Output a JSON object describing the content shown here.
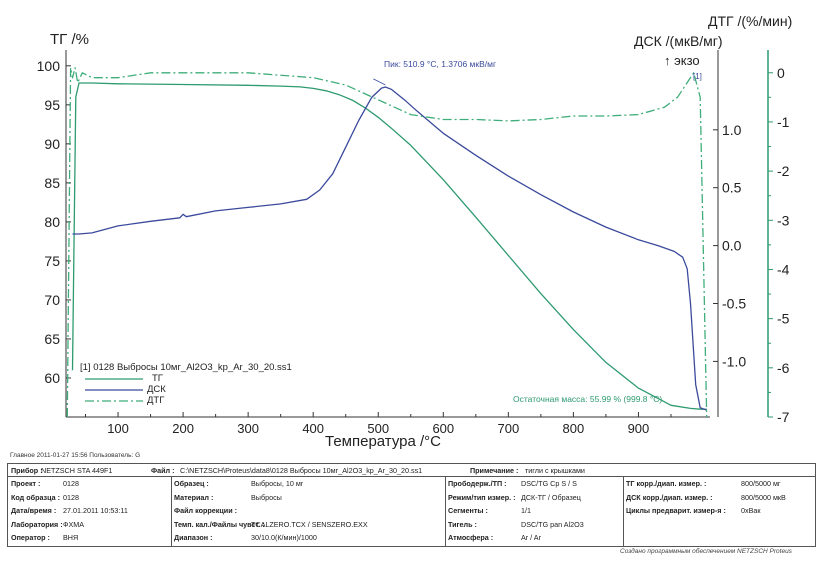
{
  "chart_data": {
    "type": "line",
    "xlabel": "Температура /°C",
    "xlim": [
      20,
      1010
    ],
    "x_ticks": [
      100,
      200,
      300,
      400,
      500,
      600,
      700,
      800,
      900
    ],
    "left_axis": {
      "label": "ТГ /%",
      "range": [
        55,
        101
      ],
      "ticks": [
        60,
        65,
        70,
        75,
        80,
        85,
        90,
        95,
        100
      ]
    },
    "right_axis_dsc": {
      "label": "ДСК /(мкВ/мг)",
      "range": [
        -1.48,
        1.62
      ],
      "ticks": [
        "1.0",
        "0.5",
        "0.0",
        "-0.5",
        "-1.0"
      ],
      "tick_values": [
        1.0,
        0.5,
        0.0,
        -0.5,
        -1.0
      ]
    },
    "right_axis_dtg": {
      "label": "ДТГ /(%/мин)",
      "range": [
        -7.0,
        0.3
      ],
      "ticks": [
        0,
        -1,
        -2,
        -3,
        -4,
        -5,
        -6,
        -7
      ]
    },
    "exo_label": "↑ экзо",
    "segment_marker": "[1]",
    "series": [
      {
        "name": "ТГ",
        "axis": "left",
        "color": "#2e9a70",
        "dash": "solid",
        "x": [
          30,
          32,
          35,
          40,
          60,
          100,
          200,
          300,
          350,
          380,
          400,
          420,
          440,
          460,
          480,
          500,
          520,
          550,
          600,
          650,
          700,
          750,
          800,
          850,
          900,
          950,
          980,
          995,
          1005
        ],
        "y": [
          61,
          75,
          96,
          97.8,
          97.8,
          97.7,
          97.6,
          97.5,
          97.4,
          97.3,
          97.1,
          96.8,
          96.3,
          95.6,
          94.6,
          93.4,
          92.0,
          89.8,
          85.4,
          80.6,
          75.7,
          70.8,
          66.2,
          62.0,
          58.7,
          56.5,
          56.1,
          56.0,
          56.0
        ]
      },
      {
        "name": "ДСК",
        "axis": "dsc",
        "color": "#3b4a9c",
        "dash": "solid",
        "x": [
          30,
          40,
          60,
          80,
          100,
          150,
          195,
          200,
          205,
          250,
          300,
          350,
          390,
          410,
          430,
          450,
          470,
          490,
          505,
          511,
          520,
          540,
          560,
          600,
          650,
          700,
          750,
          800,
          850,
          900,
          930,
          955,
          968,
          975,
          980,
          988,
          995,
          1005
        ],
        "x_comment": "",
        "y": [
          0.1,
          0.1,
          0.11,
          0.14,
          0.17,
          0.21,
          0.24,
          0.27,
          0.25,
          0.3,
          0.33,
          0.36,
          0.4,
          0.48,
          0.62,
          0.85,
          1.08,
          1.28,
          1.36,
          1.37,
          1.35,
          1.26,
          1.16,
          0.97,
          0.78,
          0.6,
          0.44,
          0.29,
          0.16,
          0.05,
          0.0,
          -0.05,
          -0.1,
          -0.2,
          -0.5,
          -1.2,
          -1.4,
          -1.42
        ]
      },
      {
        "name": "ДТГ",
        "axis": "dtg",
        "color": "#3fae7a",
        "dash": "dashed",
        "x": [
          22,
          27,
          30,
          34,
          38,
          45,
          60,
          80,
          100,
          150,
          200,
          300,
          400,
          450,
          500,
          550,
          600,
          650,
          700,
          750,
          800,
          850,
          900,
          940,
          960,
          975,
          985,
          995,
          1005
        ],
        "y": [
          -7.0,
          0.1,
          -0.1,
          0.1,
          -0.2,
          0.0,
          -0.1,
          -0.1,
          -0.1,
          0.0,
          0.0,
          0.0,
          -0.1,
          -0.25,
          -0.55,
          -0.85,
          -0.95,
          -0.95,
          -0.98,
          -0.95,
          -0.88,
          -0.88,
          -0.85,
          -0.7,
          -0.5,
          -0.2,
          0.0,
          -0.5,
          -7.0
        ]
      }
    ],
    "annotations": {
      "peak": "Пик: 510.9 °C, 1.3706 мкВ/мг",
      "residual": "Остаточная масса: 55.99 % (999.8 °C)"
    },
    "legend": {
      "file": "[1] 0128 Выбросы 10мг_Al2O3_kp_Ar_30_20.ss1",
      "placement": "bottom-left"
    }
  },
  "footer": {
    "user_stamp": "Главное   2011-01-27 15:56   Пользователь: G",
    "software_note": "Создано программным обеспечением NETZSCH Proteus"
  },
  "info_table": {
    "instrument_key": "Прибор :",
    "instrument_val": "NETZSCH STA 449F1",
    "file_key": "Файл :",
    "file_val": "C:\\NETZSCH\\Proteus\\data8\\0128 Выбросы 10мг_Al2O3_kp_Ar_30_20.ss1",
    "note_key": "Примечание :",
    "note_val": "тигли с крышками",
    "rows": [
      [
        {
          "k": "Проект :",
          "v": "0128"
        },
        {
          "k": "Образец :",
          "v": "Выбросы, 10 мг"
        },
        {
          "k": "Прободерж./ТП :",
          "v": "DSC/TG Cp S / S"
        },
        {
          "k": "ТГ корр./диап. измер. :",
          "v": "800/5000 мг"
        }
      ],
      [
        {
          "k": "Код образца :",
          "v": "0128"
        },
        {
          "k": "Материал :",
          "v": "Выбросы"
        },
        {
          "k": "Режим/тип измер. :",
          "v": "ДСК-ТГ / Образец"
        },
        {
          "k": "ДСК корр./диап. измер. :",
          "v": "800/5000 мкВ"
        }
      ],
      [
        {
          "k": "Дата/время :",
          "v": "27.01.2011 10:53:11"
        },
        {
          "k": "Файл коррекции :",
          "v": ""
        },
        {
          "k": "Сегменты :",
          "v": "1/1"
        },
        {
          "k": "Циклы предварит. измер-я :",
          "v": "0хВак"
        }
      ],
      [
        {
          "k": "Лаборатория :",
          "v": "ФХМА"
        },
        {
          "k": "Темп. кал./Файлы чувст. :",
          "v": "TCALZERO.TCX / SENSZERO.EXX"
        },
        {
          "k": "Тигель :",
          "v": "DSC/TG pan Al2O3"
        },
        {
          "k": "",
          "v": ""
        }
      ],
      [
        {
          "k": "Оператор :",
          "v": "ВНЯ"
        },
        {
          "k": "Диапазон :",
          "v": "30/10.0(К/мин)/1000"
        },
        {
          "k": "Атмосфера :",
          "v": "Ar / Ar"
        },
        {
          "k": "",
          "v": ""
        }
      ]
    ]
  },
  "colors": {
    "tg": "#2e9a70",
    "dsc": "#3b4a9c",
    "dtg": "#3fae7a",
    "axis_dtg": "#2e9a70",
    "axis_main": "#333333"
  }
}
